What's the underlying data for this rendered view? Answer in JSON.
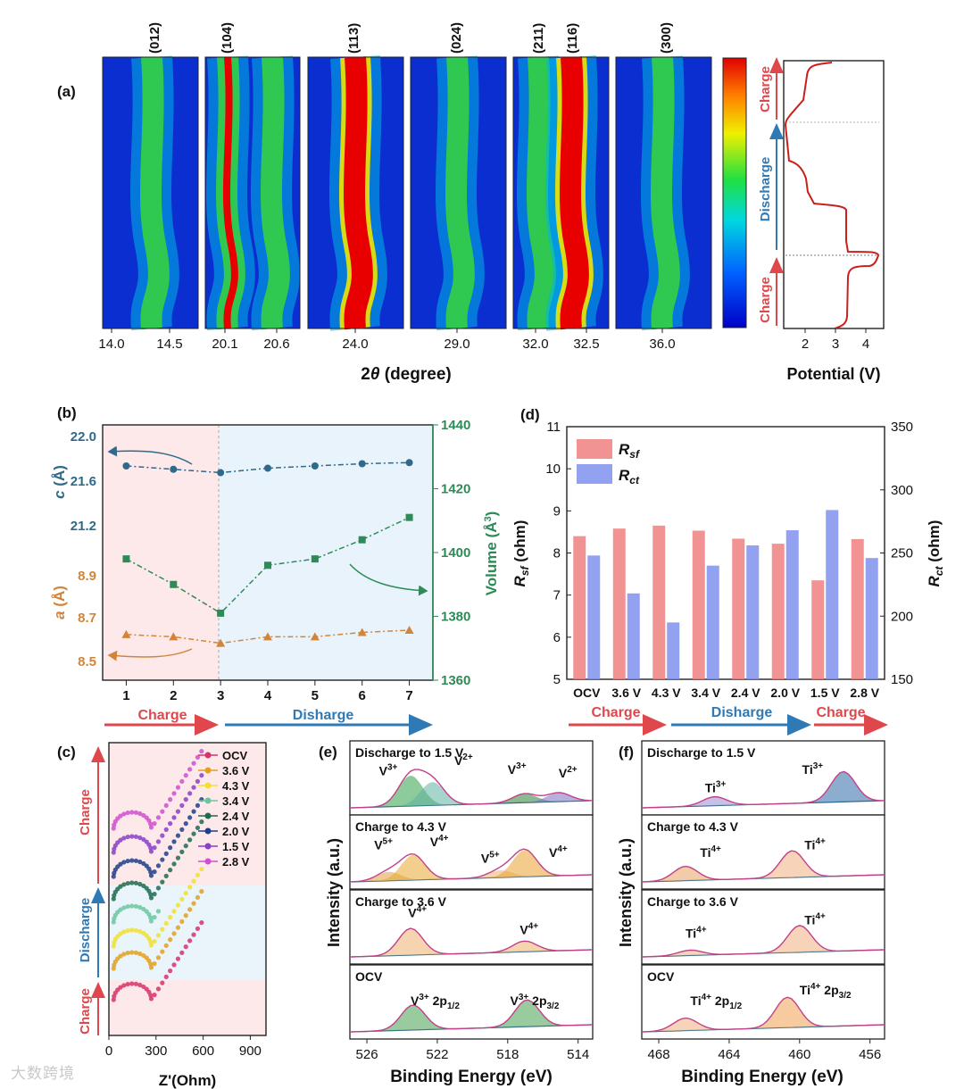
{
  "panel_labels": {
    "a": "(a)",
    "b": "(b)",
    "c": "(c)",
    "d": "(d)",
    "e": "(e)",
    "f": "(f)"
  },
  "palette": {
    "charge": "#e0474c",
    "discharge": "#2f79b5",
    "a_axis": "#d2853a",
    "c_axis": "#2f6a8a",
    "volume_axis": "#2e8b57"
  },
  "panel_a": {
    "heatmaps": [
      {
        "peaks": [
          "(012)"
        ],
        "ticks": [
          "14.0",
          "14.5"
        ]
      },
      {
        "peaks": [
          "(104)"
        ],
        "ticks": [
          "20.1",
          "20.6"
        ]
      },
      {
        "peaks": [
          "(113)"
        ],
        "ticks": [
          "24.0"
        ]
      },
      {
        "peaks": [
          "(024)"
        ],
        "ticks": [
          "29.0"
        ]
      },
      {
        "peaks": [
          "(211)",
          "(116)"
        ],
        "ticks": [
          "32.0",
          "32.5"
        ]
      },
      {
        "peaks": [
          "(300)"
        ],
        "ticks": [
          "36.0"
        ]
      }
    ],
    "xlabel_prefix": "2",
    "xlabel_theta": "θ",
    "xlabel_suffix": " (degree)",
    "potential": {
      "xlabel": "Potential (V)",
      "ticks": [
        "2",
        "3",
        "4"
      ],
      "stages": [
        "Charge",
        "Discharge",
        "Charge"
      ]
    }
  },
  "chart_data": [
    {
      "type": "line",
      "panel": "b",
      "x": [
        1,
        2,
        3,
        4,
        5,
        6,
        7
      ],
      "xlim": [
        0.5,
        7.5
      ],
      "x_ticks": [
        "1",
        "2",
        "3",
        "4",
        "5",
        "6",
        "7"
      ],
      "series": [
        {
          "name": "c",
          "unit": "Å",
          "values": [
            21.72,
            21.69,
            21.66,
            21.7,
            21.72,
            21.74,
            21.75
          ],
          "ticks": [
            "22.0",
            "21.6",
            "21.2"
          ]
        },
        {
          "name": "a",
          "unit": "Å",
          "values": [
            8.62,
            8.61,
            8.58,
            8.61,
            8.61,
            8.63,
            8.64
          ],
          "ticks": [
            "8.9",
            "8.7",
            "8.5"
          ]
        },
        {
          "name": "Volume",
          "unit": "Å3",
          "values": [
            1398,
            1390,
            1381,
            1396,
            1398,
            1404,
            1411
          ],
          "ylim": [
            1360,
            1440
          ],
          "ticks": [
            "1360",
            "1380",
            "1400",
            "1420",
            "1440"
          ]
        }
      ],
      "stages": [
        "Charge",
        "Disharge"
      ]
    },
    {
      "type": "bar",
      "panel": "d",
      "categories": [
        "OCV",
        "3.6 V",
        "4.3 V",
        "3.4 V",
        "2.4 V",
        "2.0 V",
        "1.5 V",
        "2.8 V"
      ],
      "series": [
        {
          "name": "R_sf",
          "values": [
            8.4,
            8.58,
            8.65,
            8.53,
            8.34,
            8.22,
            7.35,
            8.33
          ],
          "ylim": [
            5,
            11
          ]
        },
        {
          "name": "R_ct",
          "values": [
            248,
            218,
            195,
            240,
            256,
            268,
            284,
            246
          ],
          "ylim": [
            150,
            350
          ]
        }
      ],
      "left_ticks": [
        "5",
        "6",
        "7",
        "8",
        "9",
        "10",
        "11"
      ],
      "right_ticks": [
        "150",
        "200",
        "250",
        "300",
        "350"
      ],
      "stages": [
        "Charge",
        "Disharge",
        "Charge"
      ]
    },
    {
      "type": "scatter",
      "panel": "c",
      "xlabel": "Z'(Ohm)",
      "x_ticks": [
        "0",
        "300",
        "600",
        "900"
      ],
      "legend": [
        "OCV",
        "3.6 V",
        "4.3 V",
        "3.4 V",
        "2.4 V",
        "2.0 V",
        "1.5 V",
        "2.8 V"
      ],
      "stages": [
        "Charge",
        "Discharge",
        "Charge"
      ]
    },
    {
      "type": "line",
      "panel": "e",
      "xlabel": "Binding Energy (eV)",
      "ylabel": "Intensity (a.u.)",
      "x_ticks": [
        "526",
        "522",
        "518",
        "514"
      ],
      "spectra": [
        {
          "title": "Discharge to 1.5 V",
          "labels": [
            [
              "V",
              "3+"
            ],
            [
              "V",
              "2+"
            ],
            [
              "V",
              "3+"
            ],
            [
              "V",
              "2+"
            ]
          ]
        },
        {
          "title": "Charge to 4.3 V",
          "labels": [
            [
              "V",
              "5+"
            ],
            [
              "V",
              "4+"
            ],
            [
              "V",
              "5+"
            ],
            [
              "V",
              "4+"
            ]
          ]
        },
        {
          "title": "Charge to 3.6 V",
          "labels": [
            [
              "V",
              "4+"
            ],
            [
              "V",
              "4+"
            ]
          ]
        },
        {
          "title": "OCV",
          "labels": [
            [
              "V",
              "3+",
              " 2p",
              "1/2"
            ],
            [
              "V",
              "3+",
              " 2p",
              "3/2"
            ]
          ]
        }
      ]
    },
    {
      "type": "line",
      "panel": "f",
      "xlabel": "Binding Energy (eV)",
      "ylabel": "Intensity (a.u.)",
      "x_ticks": [
        "468",
        "464",
        "460",
        "456"
      ],
      "spectra": [
        {
          "title": "Discharge to 1.5 V",
          "labels": [
            [
              "Ti",
              "3+"
            ],
            [
              "Ti",
              "3+"
            ]
          ]
        },
        {
          "title": "Charge to 4.3 V",
          "labels": [
            [
              "Ti",
              "4+"
            ],
            [
              "Ti",
              "4+"
            ]
          ]
        },
        {
          "title": "Charge to 3.6 V",
          "labels": [
            [
              "Ti",
              "4+"
            ],
            [
              "Ti",
              "4+"
            ]
          ]
        },
        {
          "title": "OCV",
          "labels": [
            [
              "Ti",
              "4+",
              " 2p",
              "1/2"
            ],
            [
              "Ti",
              "4+",
              " 2p",
              "3/2"
            ]
          ]
        }
      ]
    }
  ],
  "watermark": "大数跨境"
}
